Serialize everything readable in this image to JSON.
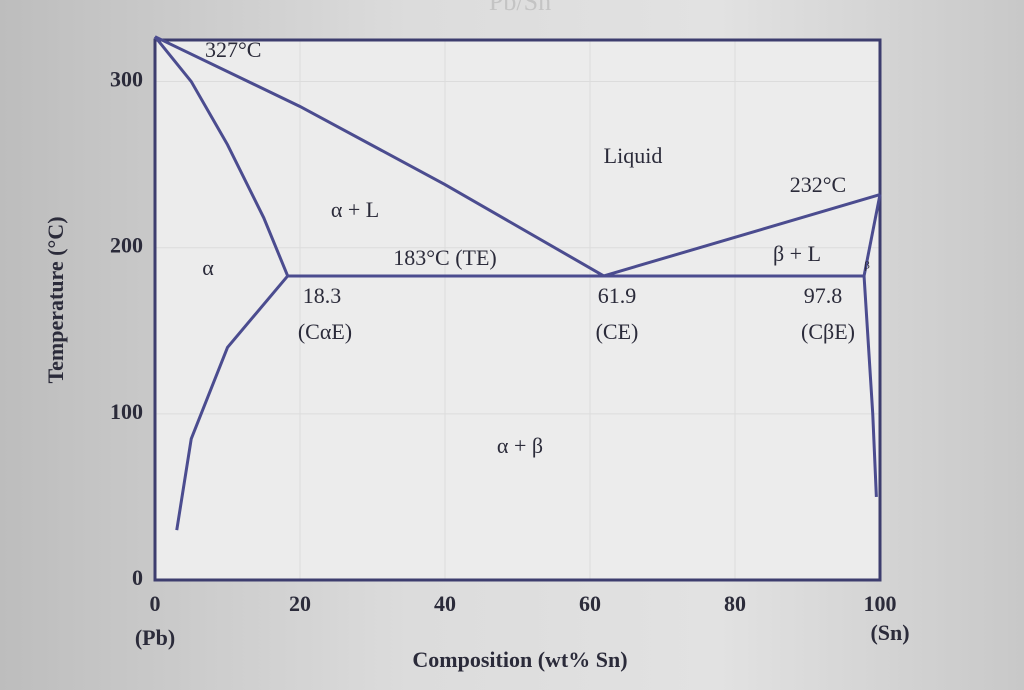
{
  "chart_data": {
    "type": "line",
    "title": "Pb/Sn",
    "xlabel": "Composition (wt% Sn)",
    "ylabel": "Temperature (°C)",
    "xlim": [
      0,
      100
    ],
    "xticks": [
      0,
      20,
      40,
      60,
      80,
      100
    ],
    "ylim": [
      0,
      325
    ],
    "yticks": [
      0,
      100,
      200,
      300
    ],
    "x_end_labels": [
      "(Pb)",
      "(Sn)"
    ],
    "grid": true,
    "series": [
      {
        "color": "#4b4c8f",
        "x": [
          0,
          20,
          40,
          61.9
        ],
        "values": [
          327,
          285,
          238,
          183
        ]
      },
      {
        "color": "#4b4c8f",
        "x": [
          61.9,
          100
        ],
        "values": [
          183,
          232
        ]
      },
      {
        "color": "#4b4c8f",
        "x": [
          0,
          5,
          10,
          15,
          18.3
        ],
        "values": [
          327,
          300,
          262,
          218,
          183
        ]
      },
      {
        "color": "#4b4c8f",
        "x": [
          18.3,
          97.8
        ],
        "values": [
          183,
          183
        ]
      },
      {
        "color": "#4b4c8f",
        "x": [
          18.3,
          10,
          5,
          3
        ],
        "values": [
          183,
          140,
          85,
          30
        ]
      },
      {
        "color": "#4b4c8f",
        "x": [
          100,
          97.8
        ],
        "values": [
          232,
          183
        ]
      },
      {
        "color": "#4b4c8f",
        "x": [
          97.8,
          99,
          99.5
        ],
        "values": [
          183,
          100,
          50
        ]
      }
    ],
    "annotations": [
      "327°C",
      "232°C",
      "Liquid",
      "α + L",
      "β + L",
      "α",
      "β",
      "183°C (TE)",
      "18.3",
      "(CαE)",
      "61.9",
      "(CE)",
      "97.8",
      "(CβE)",
      "α + β"
    ]
  }
}
